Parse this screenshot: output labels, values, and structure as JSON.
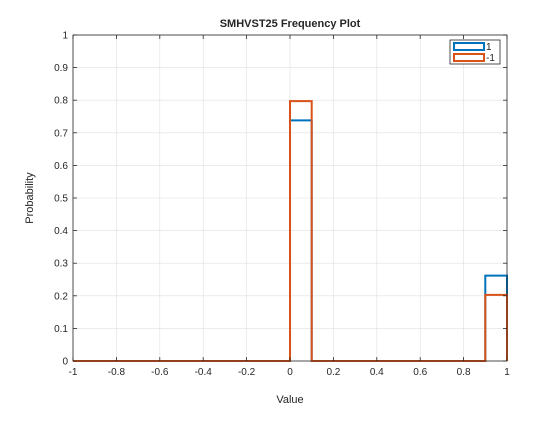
{
  "chart_data": {
    "type": "histogram-stairs",
    "title": "SMHVST25 Frequency Plot",
    "xlabel": "Value",
    "ylabel": "Probability",
    "xlim": [
      -1,
      1
    ],
    "ylim": [
      0,
      1
    ],
    "xticks": [
      "-1",
      "-0.8",
      "-0.6",
      "-0.4",
      "-0.2",
      "0",
      "0.2",
      "0.4",
      "0.6",
      "0.8",
      "1"
    ],
    "yticks": [
      "0",
      "0.1",
      "0.2",
      "0.3",
      "0.4",
      "0.5",
      "0.6",
      "0.7",
      "0.8",
      "0.9",
      "1"
    ],
    "grid": true,
    "legend_position": "top-right",
    "bin_edges": [
      -1,
      -0.9,
      -0.8,
      -0.7,
      -0.6,
      -0.5,
      -0.4,
      -0.3,
      -0.2,
      -0.1,
      0,
      0.1,
      0.2,
      0.3,
      0.4,
      0.5,
      0.6,
      0.7,
      0.8,
      0.9,
      1
    ],
    "series": [
      {
        "name": "1",
        "color": "#0072BD",
        "values": [
          0,
          0,
          0,
          0,
          0,
          0,
          0,
          0,
          0,
          0,
          0.738,
          0,
          0,
          0,
          0,
          0,
          0,
          0,
          0,
          0.262
        ]
      },
      {
        "name": "-1",
        "color": "#D95319",
        "values": [
          0,
          0,
          0,
          0,
          0,
          0,
          0,
          0,
          0,
          0,
          0.797,
          0,
          0,
          0,
          0,
          0,
          0,
          0,
          0,
          0.203
        ]
      }
    ]
  }
}
